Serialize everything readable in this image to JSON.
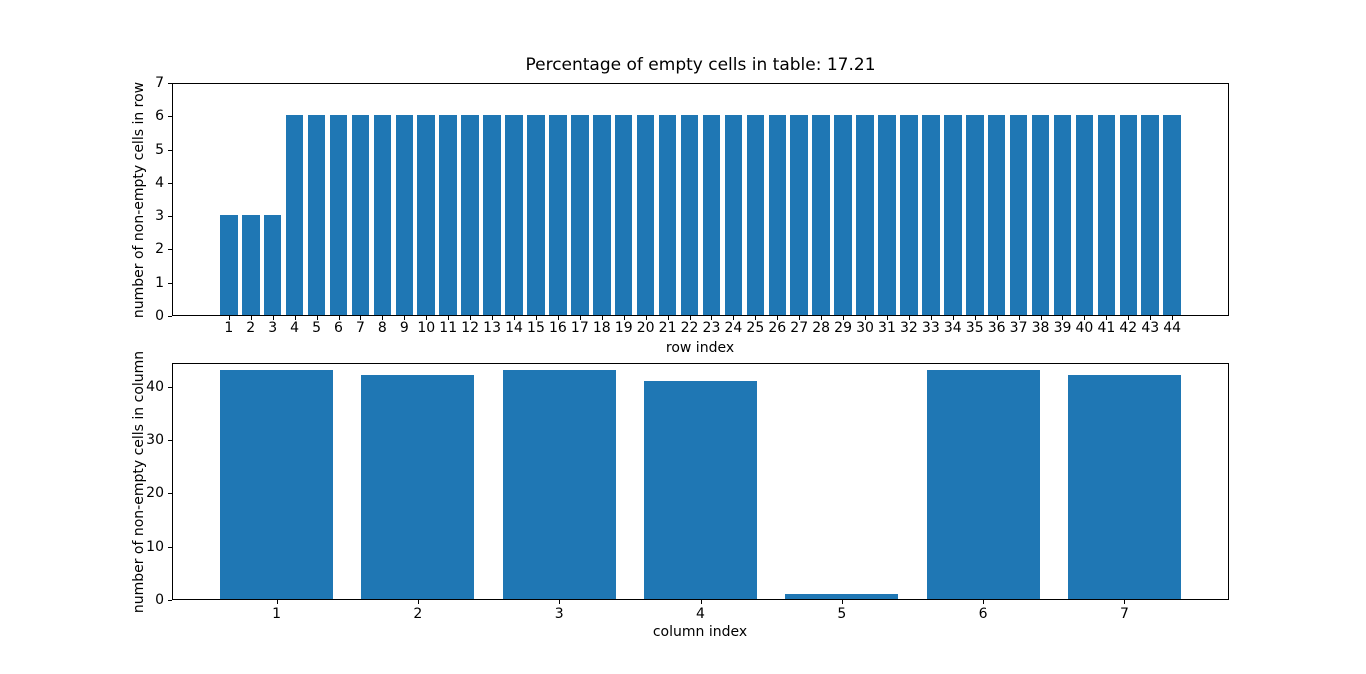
{
  "figure": {
    "background": "#ffffff",
    "text_color": "#000000",
    "spine_color": "#000000"
  },
  "chart_data": [
    {
      "type": "bar",
      "title": "Percentage of empty cells in table: 17.21",
      "xlabel": "row index",
      "ylabel": "number of non-empty cells in row",
      "categories": [
        1,
        2,
        3,
        4,
        5,
        6,
        7,
        8,
        9,
        10,
        11,
        12,
        13,
        14,
        15,
        16,
        17,
        18,
        19,
        20,
        21,
        22,
        23,
        24,
        25,
        26,
        27,
        28,
        29,
        30,
        31,
        32,
        33,
        34,
        35,
        36,
        37,
        38,
        39,
        40,
        41,
        42,
        43,
        44
      ],
      "values": [
        3,
        3,
        3,
        6,
        6,
        6,
        6,
        6,
        6,
        6,
        6,
        6,
        6,
        6,
        6,
        6,
        6,
        6,
        6,
        6,
        6,
        6,
        6,
        6,
        6,
        6,
        6,
        6,
        6,
        6,
        6,
        6,
        6,
        6,
        6,
        6,
        6,
        6,
        6,
        6,
        6,
        6,
        6,
        6
      ],
      "bar_color": "#1f77b4",
      "bar_width": 0.8,
      "xlim": [
        -1.59,
        46.59
      ],
      "ylim": [
        0,
        7
      ],
      "yticks": [
        0,
        1,
        2,
        3,
        4,
        5,
        6,
        7
      ],
      "grid": false,
      "legend": null
    },
    {
      "type": "bar",
      "title": "",
      "xlabel": "column index",
      "ylabel": "number of non-empty cells in column",
      "categories": [
        1,
        2,
        3,
        4,
        5,
        6,
        7
      ],
      "values": [
        43,
        42,
        43,
        41,
        1,
        43,
        42
      ],
      "bar_color": "#1f77b4",
      "bar_width": 0.8,
      "xlim": [
        0.26,
        7.74
      ],
      "ylim": [
        0,
        44.5
      ],
      "yticks": [
        0,
        10,
        20,
        30,
        40
      ],
      "grid": false,
      "legend": null
    }
  ]
}
